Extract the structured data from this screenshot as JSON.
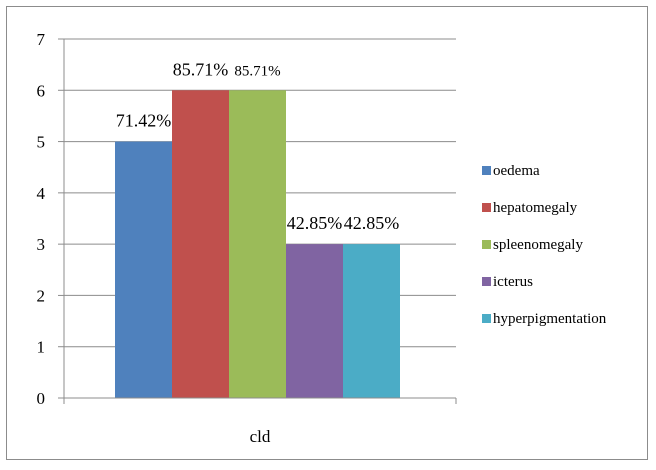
{
  "chart_data": {
    "type": "bar",
    "categories": [
      "cld"
    ],
    "series": [
      {
        "name": "oedema",
        "values": [
          5
        ],
        "label": "71.42%",
        "color": "#4f81bd"
      },
      {
        "name": "hepatomegaly",
        "values": [
          6
        ],
        "label": "85.71%",
        "color": "#c0504d"
      },
      {
        "name": "spleenomegaly",
        "values": [
          6
        ],
        "label": "85.71%",
        "color": "#9bbb59"
      },
      {
        "name": "icterus",
        "values": [
          3
        ],
        "label": "42.85%",
        "color": "#8064a2"
      },
      {
        "name": "hyperpigmentation",
        "values": [
          3
        ],
        "label": "42.85%",
        "color": "#4bacc6"
      }
    ],
    "yticks": [
      "0",
      "1",
      "2",
      "3",
      "4",
      "5",
      "6",
      "7"
    ],
    "ylim": [
      0,
      7
    ],
    "title": "",
    "xlabel": "",
    "ylabel": "",
    "grid": true,
    "legend": "right"
  }
}
